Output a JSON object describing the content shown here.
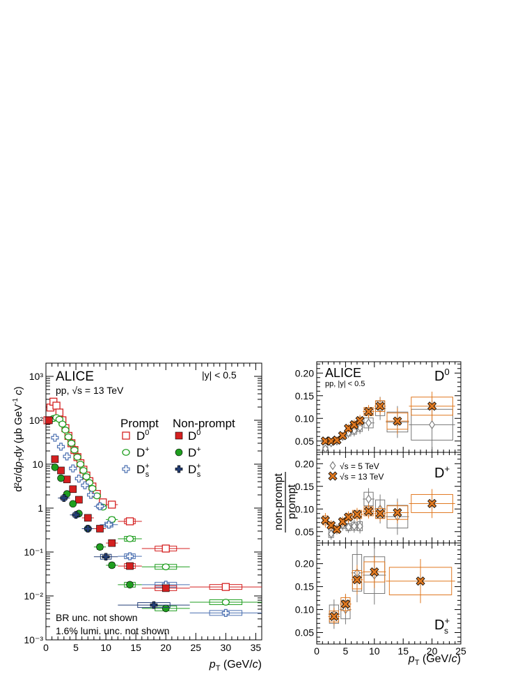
{
  "figure": {
    "experiment": "ALICE",
    "left_energy_label": "pp, √s = 13 TeV",
    "left_rapidity": "|y| < 0.5",
    "right_collision_label": "pp, |y| < 0.5",
    "br_note": "BR unc. not shown",
    "lumi_note": "1.6% lumi. unc. not shown",
    "legend_prompt": "Prompt",
    "legend_nonprompt": "Non-prompt",
    "species": [
      "D⁰",
      "D⁺",
      "Ds⁺"
    ],
    "energy_5": "√s = 5 TeV",
    "energy_13": "√s = 13 TeV"
  },
  "colors": {
    "D0": "#d42020",
    "Dplus": "#1f9e1f",
    "Ds": "#4a6fb0",
    "Ds_nonprompt": "#243f78",
    "orange": "#e0781f",
    "gray": "#777777"
  },
  "chart_data": [
    {
      "type": "scatter",
      "scale": "log",
      "ylabel": "d²σ/dp_T dy (μb GeV⁻¹ c)",
      "xlabel": "p_T (GeV/c)",
      "xlim": [
        0,
        36
      ],
      "ylim": [
        0.001,
        2000
      ],
      "x_ticks": [
        "0",
        "5",
        "10",
        "15",
        "20",
        "25",
        "30",
        "35"
      ],
      "y_ticks": [
        "10⁻³",
        "10⁻²",
        "10⁻¹",
        "1",
        "10",
        "10²",
        "10³"
      ],
      "series": [
        {
          "name": "Prompt D0",
          "marker": "open-square",
          "color": "#d42020",
          "x": [
            0.25,
            0.75,
            1.25,
            1.75,
            2.25,
            2.75,
            3.25,
            3.75,
            4.25,
            4.75,
            5.25,
            5.75,
            6.25,
            6.75,
            7.25,
            7.75,
            8.5,
            9.5,
            11,
            14,
            20,
            30
          ],
          "xerr": [
            0.25,
            0.25,
            0.25,
            0.25,
            0.25,
            0.25,
            0.25,
            0.25,
            0.25,
            0.25,
            0.25,
            0.25,
            0.25,
            0.25,
            0.25,
            0.25,
            0.5,
            0.5,
            1,
            2,
            4,
            6
          ],
          "y": [
            100,
            195,
            265,
            215,
            150,
            100,
            66,
            44,
            30,
            21,
            14.5,
            10.5,
            7.5,
            5.5,
            4.1,
            3.1,
            2.1,
            1.35,
            1.2,
            0.5,
            0.12,
            0.016
          ]
        },
        {
          "name": "Prompt D+",
          "marker": "open-circle",
          "color": "#1f9e1f",
          "x": [
            1.25,
            1.75,
            2.25,
            2.75,
            3.25,
            3.75,
            4.25,
            4.75,
            5.25,
            5.75,
            6.25,
            6.75,
            7.25,
            7.75,
            8.5,
            9.5,
            11,
            14,
            20,
            30
          ],
          "xerr": [
            0.25,
            0.25,
            0.25,
            0.25,
            0.25,
            0.25,
            0.25,
            0.25,
            0.25,
            0.25,
            0.25,
            0.25,
            0.25,
            0.25,
            0.5,
            0.5,
            1,
            2,
            4,
            6
          ],
          "y": [
            110,
            115,
            105,
            82,
            60,
            42,
            30,
            21,
            14.5,
            10,
            7.2,
            5.2,
            3.8,
            2.8,
            1.9,
            1.05,
            0.55,
            0.2,
            0.046,
            0.0072
          ]
        },
        {
          "name": "Prompt Ds+",
          "marker": "open-cross",
          "color": "#4a6fb0",
          "x": [
            1.5,
            2.5,
            3.5,
            4.5,
            5.5,
            6.5,
            7.5,
            9,
            10.5,
            14,
            20,
            30
          ],
          "xerr": [
            0.5,
            0.5,
            0.5,
            0.5,
            0.5,
            0.5,
            0.5,
            1,
            1.5,
            2,
            4,
            6
          ],
          "y": [
            40,
            25,
            15,
            8,
            4.7,
            3.3,
            2.0,
            1.1,
            0.42,
            0.08,
            0.018,
            0.0041
          ]
        },
        {
          "name": "Non-prompt D0",
          "marker": "filled-square",
          "color": "#d42020",
          "x": [
            0.5,
            1.5,
            2.5,
            3.5,
            4.5,
            5.5,
            7,
            9,
            11,
            14,
            20
          ],
          "xerr": [
            0.5,
            0.5,
            0.5,
            0.5,
            0.5,
            0.5,
            1,
            1,
            1,
            2,
            4
          ],
          "y": [
            100,
            13,
            7.2,
            4.5,
            2.7,
            1.55,
            0.6,
            0.34,
            0.16,
            0.048,
            0.015
          ]
        },
        {
          "name": "Non-prompt D+",
          "marker": "filled-circle",
          "color": "#1f9e1f",
          "x": [
            1.5,
            2.5,
            3.5,
            4.5,
            5.5,
            7,
            9,
            11,
            14,
            20
          ],
          "xerr": [
            0.5,
            0.5,
            0.5,
            0.5,
            0.5,
            1,
            1,
            1,
            2,
            4
          ],
          "y": [
            8.5,
            4.8,
            2.1,
            1.25,
            0.75,
            0.34,
            0.13,
            0.05,
            0.018,
            0.0052
          ]
        },
        {
          "name": "Non-prompt Ds+",
          "marker": "filled-cross",
          "color": "#243f78",
          "x": [
            3,
            5,
            7,
            10,
            18
          ],
          "xerr": [
            1,
            1,
            1,
            2,
            6
          ],
          "y": [
            1.7,
            0.7,
            0.34,
            0.078,
            0.0062
          ]
        }
      ]
    },
    {
      "type": "scatter",
      "panel": "D0",
      "ylabel": "non-prompt/prompt",
      "xlim": [
        0,
        25
      ],
      "ylim": [
        0.025,
        0.225
      ],
      "y_ticks": [
        "0.05",
        "0.10",
        "0.15",
        "0.20"
      ],
      "series": [
        {
          "name": "√s = 5 TeV",
          "marker": "open-diamond",
          "color": "#777777",
          "x": [
            1.5,
            2.5,
            3.5,
            4.5,
            5.5,
            6.5,
            7.5,
            9,
            11,
            14,
            20
          ],
          "xerr": [
            0.5,
            0.5,
            0.5,
            0.5,
            0.5,
            0.5,
            0.5,
            1,
            1,
            2,
            4
          ],
          "y": [
            0.033,
            0.046,
            0.05,
            0.06,
            0.068,
            0.073,
            0.08,
            0.09,
            0.122,
            0.092,
            0.086
          ],
          "yerr": [
            0.004,
            0.005,
            0.005,
            0.006,
            0.007,
            0.008,
            0.009,
            0.011,
            0.016,
            0.022,
            0.034
          ]
        },
        {
          "name": "√s = 13 TeV",
          "marker": "filled-x",
          "color": "#e0781f",
          "x": [
            1.5,
            2.5,
            3.5,
            4.5,
            5.5,
            6.5,
            7.5,
            9,
            11,
            14,
            20
          ],
          "xerr": [
            0.5,
            0.5,
            0.5,
            0.5,
            0.5,
            0.5,
            0.5,
            1,
            1,
            2,
            4
          ],
          "y": [
            0.05,
            0.05,
            0.052,
            0.062,
            0.078,
            0.086,
            0.095,
            0.115,
            0.127,
            0.094,
            0.127
          ],
          "yerr": [
            0.004,
            0.004,
            0.005,
            0.005,
            0.006,
            0.007,
            0.008,
            0.009,
            0.012,
            0.018,
            0.02
          ]
        }
      ]
    },
    {
      "type": "scatter",
      "panel": "D+",
      "ylabel": "non-prompt/prompt",
      "xlim": [
        0,
        25
      ],
      "ylim": [
        0.025,
        0.225
      ],
      "y_ticks": [
        "0.05",
        "0.10",
        "0.15",
        "0.20"
      ],
      "series": [
        {
          "name": "√s = 5 TeV",
          "marker": "open-diamond",
          "color": "#777777",
          "x": [
            2.5,
            3.5,
            4.5,
            5.5,
            6.5,
            7.5,
            9,
            11,
            14
          ],
          "xerr": [
            0.5,
            0.5,
            0.5,
            0.5,
            0.5,
            0.5,
            1,
            1,
            2
          ],
          "y": [
            0.045,
            0.055,
            0.065,
            0.06,
            0.062,
            0.062,
            0.122,
            0.1,
            0.083
          ],
          "yerr": [
            0.008,
            0.007,
            0.008,
            0.008,
            0.009,
            0.01,
            0.015,
            0.02,
            0.025
          ]
        },
        {
          "name": "√s = 13 TeV",
          "marker": "filled-x",
          "color": "#e0781f",
          "x": [
            1.5,
            2.5,
            3.5,
            4.5,
            5.5,
            7,
            9,
            11,
            14,
            20
          ],
          "xerr": [
            0.5,
            0.5,
            0.5,
            0.5,
            0.5,
            1,
            1,
            1,
            2,
            4
          ],
          "y": [
            0.075,
            0.064,
            0.055,
            0.072,
            0.082,
            0.088,
            0.095,
            0.09,
            0.092,
            0.112
          ],
          "yerr": [
            0.01,
            0.007,
            0.006,
            0.007,
            0.008,
            0.009,
            0.01,
            0.011,
            0.015,
            0.02
          ]
        }
      ]
    },
    {
      "type": "scatter",
      "panel": "Ds+",
      "xlabel": "p_T (GeV/c)",
      "xlim": [
        0,
        25
      ],
      "ylim": [
        0.025,
        0.245
      ],
      "x_ticks": [
        "0",
        "5",
        "10",
        "15",
        "20",
        "25"
      ],
      "y_ticks": [
        "0.05",
        "0.10",
        "0.15",
        "0.20"
      ],
      "series": [
        {
          "name": "√s = 5 TeV",
          "marker": "open-diamond",
          "color": "#777777",
          "x": [
            3,
            5,
            7,
            10
          ],
          "xerr": [
            1,
            1,
            1,
            2
          ],
          "y": [
            0.09,
            0.1,
            0.18,
            0.175
          ],
          "yerr": [
            0.02,
            0.02,
            0.04,
            0.04
          ]
        },
        {
          "name": "√s = 13 TeV",
          "marker": "filled-x",
          "color": "#e0781f",
          "x": [
            3,
            5,
            7,
            10,
            18
          ],
          "xerr": [
            1,
            1,
            1,
            2,
            6
          ],
          "y": [
            0.085,
            0.112,
            0.165,
            0.182,
            0.162
          ],
          "yerr": [
            0.012,
            0.014,
            0.02,
            0.022,
            0.03
          ]
        }
      ]
    }
  ]
}
